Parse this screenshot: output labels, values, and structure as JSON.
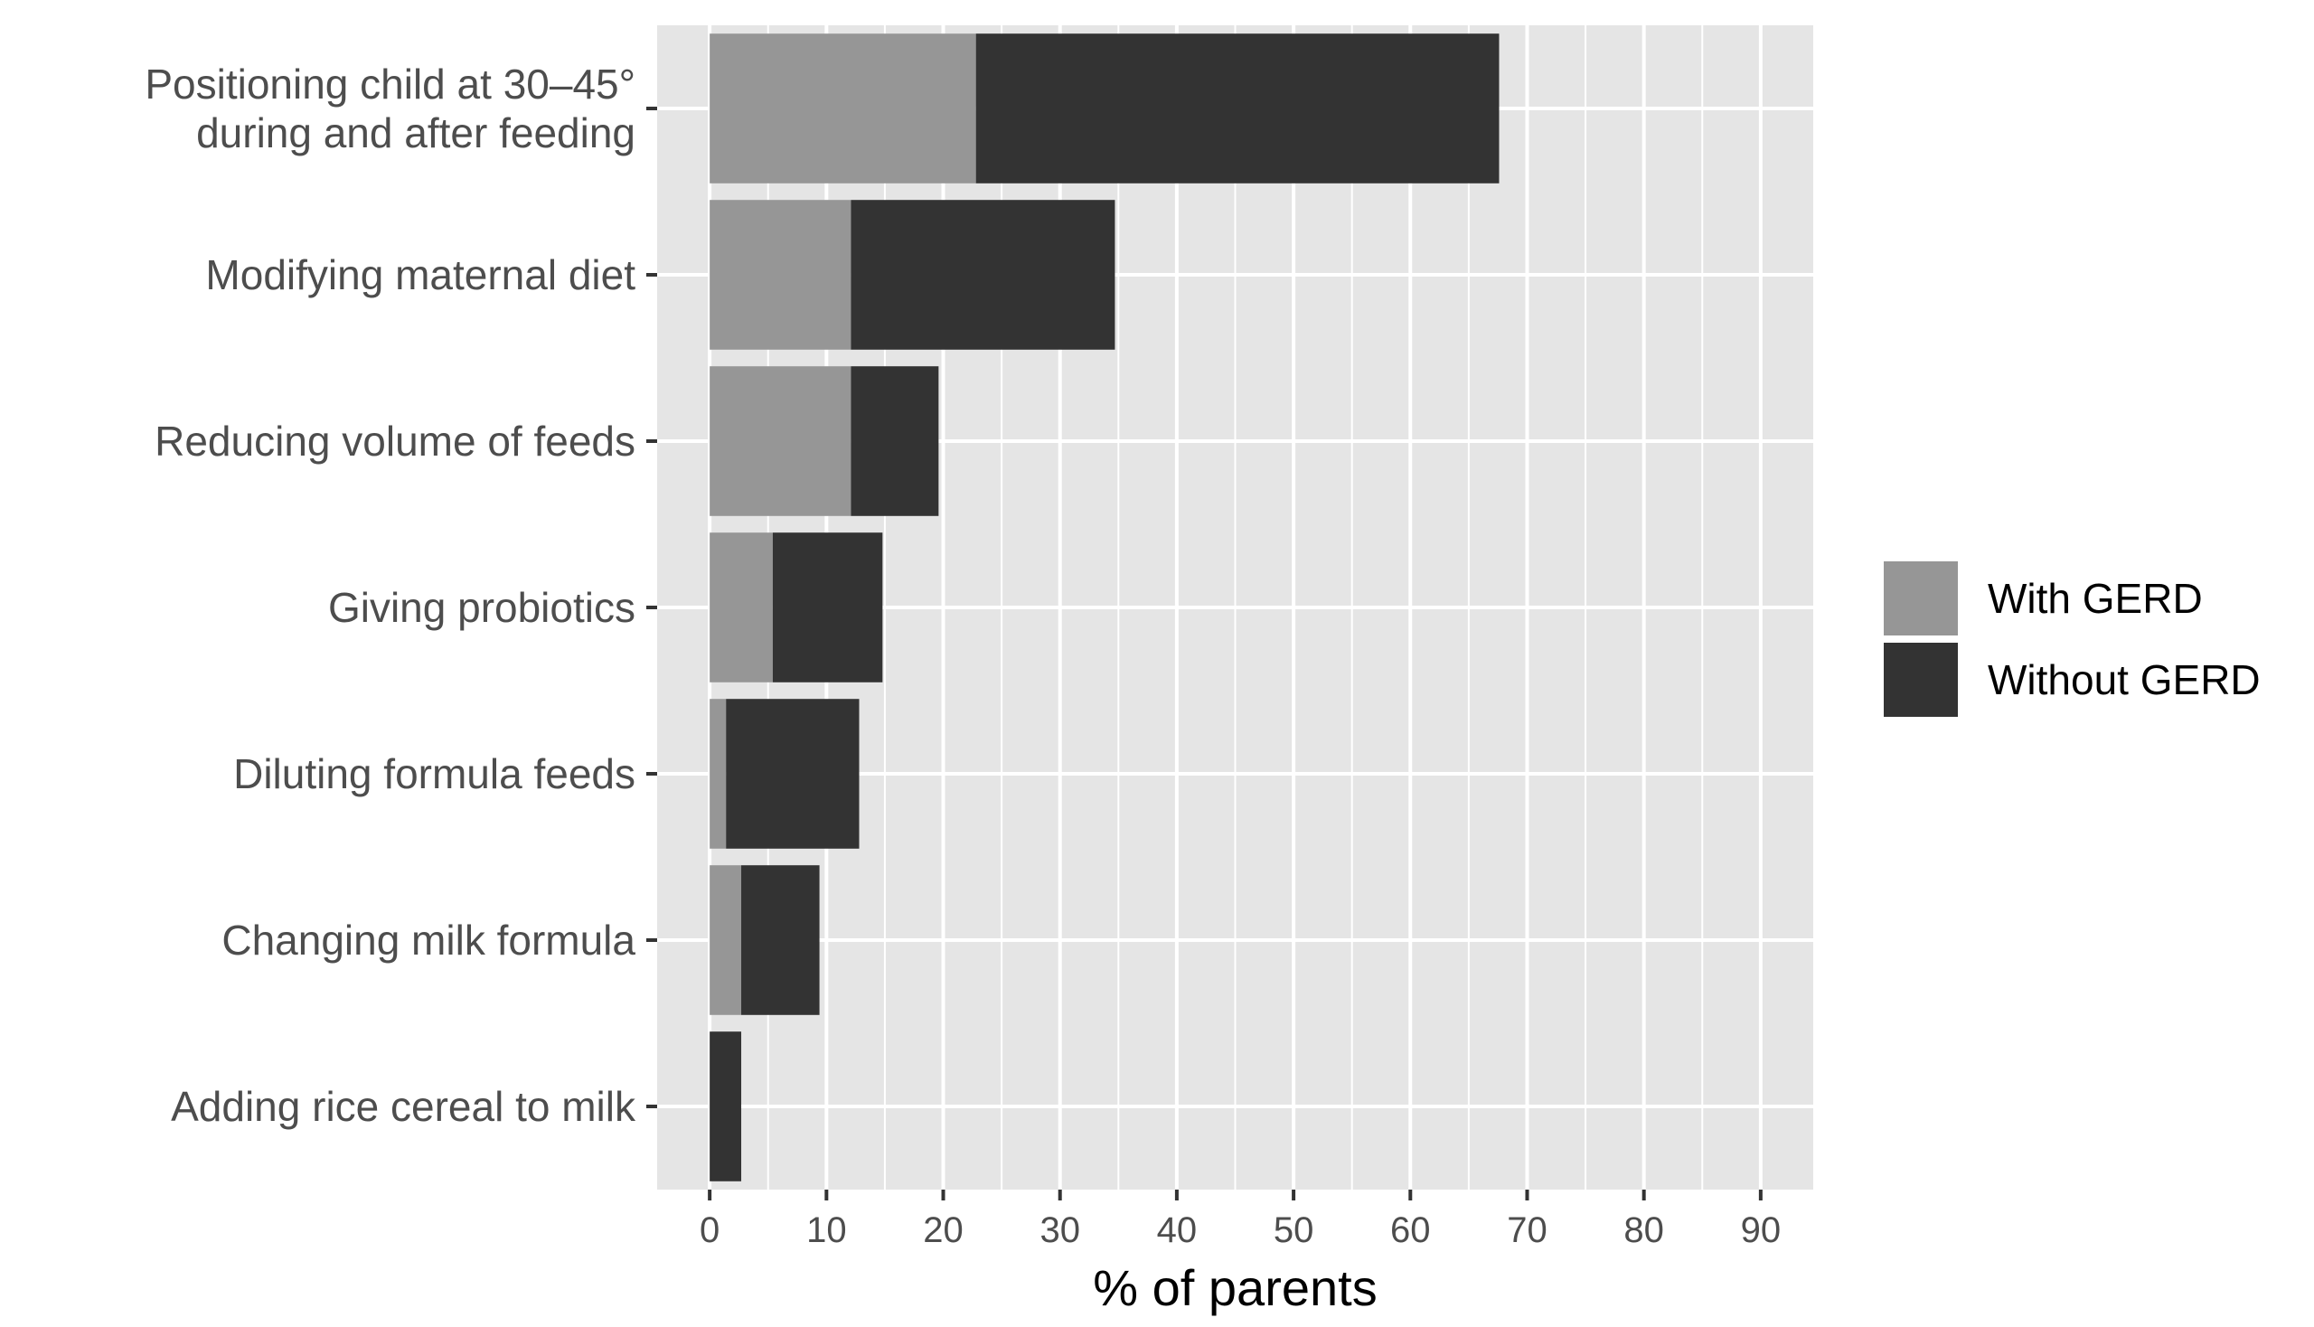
{
  "chart_data": {
    "type": "bar",
    "orientation": "horizontal",
    "stacked": true,
    "categories": [
      [
        "Positioning child at 30–45°",
        "during and after feeding"
      ],
      [
        "Modifying maternal diet"
      ],
      [
        "Reducing volume of feeds"
      ],
      [
        "Giving probiotics"
      ],
      [
        "Diluting formula feeds"
      ],
      [
        "Changing milk formula"
      ],
      [
        "Adding rice cereal to milk"
      ]
    ],
    "series": [
      {
        "name": "With GERD",
        "color": "#969696",
        "values": [
          22.8,
          12.1,
          12.1,
          5.4,
          1.4,
          2.7,
          0
        ]
      },
      {
        "name": "Without GERD",
        "color": "#333333",
        "values": [
          44.8,
          22.6,
          7.5,
          9.4,
          11.4,
          6.7,
          2.7
        ]
      }
    ],
    "xlabel": "% of parents",
    "ylabel": "",
    "xlim": [
      -4.5,
      94.5
    ],
    "xticks": [
      0,
      10,
      20,
      30,
      40,
      50,
      60,
      70,
      80,
      90
    ],
    "xtick_labels": [
      "0",
      "10",
      "20",
      "30",
      "40",
      "50",
      "60",
      "70",
      "80",
      "90"
    ],
    "grid": true,
    "legend": {
      "position": "right",
      "entries": [
        "With GERD",
        "Without GERD"
      ]
    },
    "colors": {
      "panel": "#e5e5e5",
      "grid": "#ffffff",
      "text": "#4d4d4d",
      "axis_title": "#000000"
    }
  }
}
